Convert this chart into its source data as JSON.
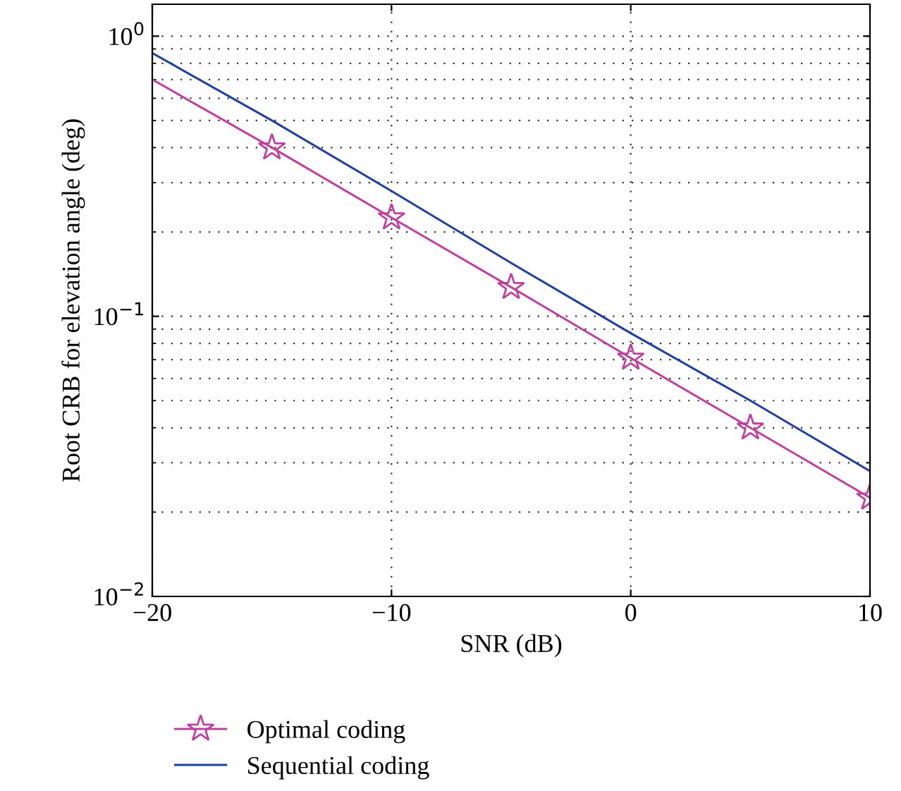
{
  "chart_data": {
    "type": "line",
    "xlabel": "SNR (dB)",
    "ylabel": "Root CRB for elevation angle (deg)",
    "log": "y",
    "xlim": [
      -20,
      10
    ],
    "xticks": [
      {
        "value": -20,
        "label": "−20"
      },
      {
        "value": -10,
        "label": "−10"
      },
      0,
      10
    ],
    "ylim": [
      0.01,
      1.3
    ],
    "yticks": [
      {
        "value": 0.01,
        "label": "10$^{−2}$"
      },
      {
        "value": 0.1,
        "label": "10$^{−1}$"
      },
      {
        "value": 1,
        "label": "10$^{0}$"
      }
    ],
    "grid": true,
    "legend": "bottom left",
    "line_style": "solid",
    "series": [
      {
        "name": "Optimal coding",
        "color": "#c040a0",
        "marker": "star",
        "x": [
          -15,
          -10,
          -5,
          0,
          5,
          10
        ],
        "values": [
          0.4,
          0.225,
          0.127,
          0.071,
          0.04,
          0.0225
        ]
      },
      {
        "color": "#c040a0",
        "marker": "none",
        "x": [
          -20,
          -15
        ],
        "values": [
          0.7,
          0.4
        ]
      },
      {
        "name": "Sequential coding",
        "color": "#2040a0",
        "marker": "none",
        "x": [
          -20,
          -15,
          -10,
          -5,
          0,
          5,
          10
        ],
        "values": [
          0.87,
          0.5,
          0.28,
          0.155,
          0.087,
          0.05,
          0.028
        ]
      }
    ]
  }
}
